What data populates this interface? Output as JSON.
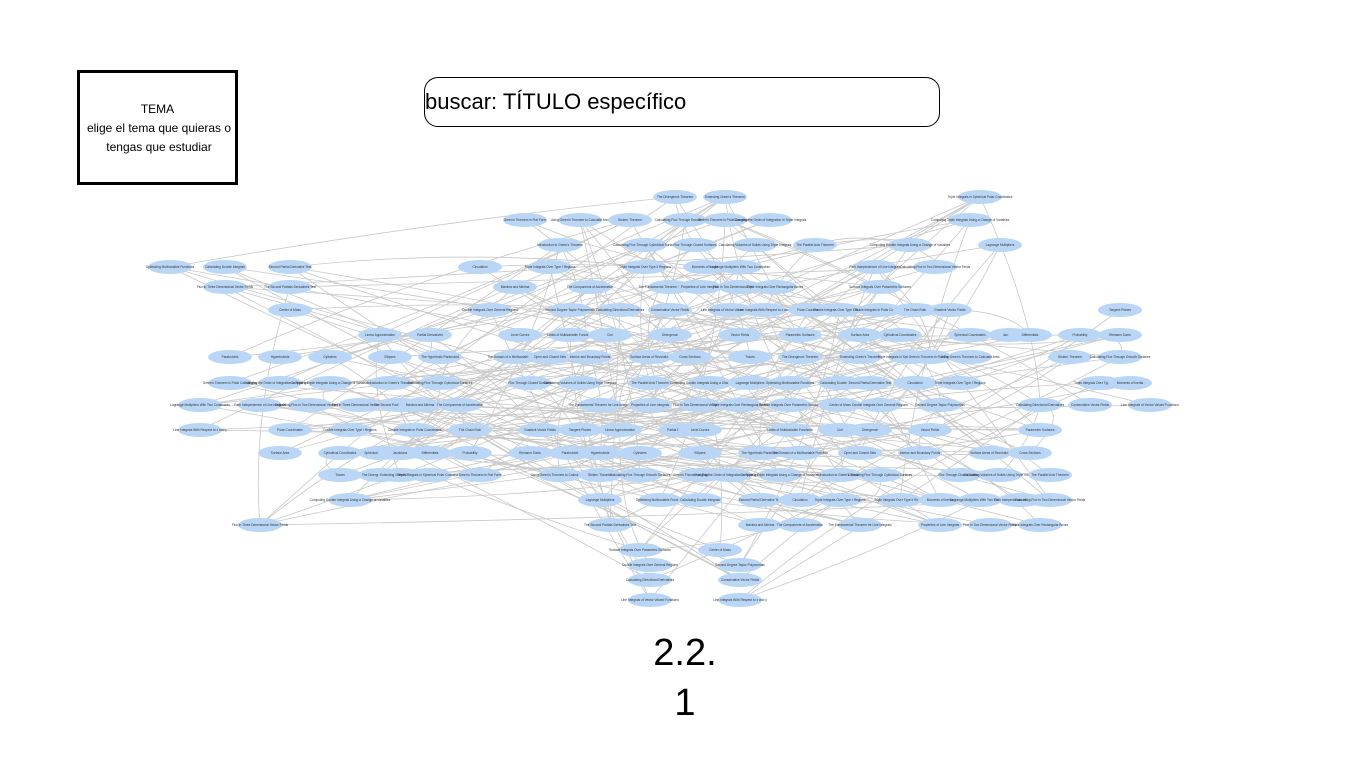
{
  "tema": {
    "title": "TEMA",
    "description": "elige el tema que quieras o tengas que estudiar"
  },
  "search": {
    "label": "buscar: TÍTULO específico"
  },
  "diagram": {
    "node_color": "#b9d6f6",
    "edge_color": "#c8c8c8",
    "nodes": [
      "The Divergence Theorem",
      "Extending Green's Theorem",
      "Triple Integrals in Spherical Polar Coordinates",
      "Green's Theorem in Flat Form",
      "Using Green's Theorem to Calculate Area",
      "Stokes' Theorem",
      "Calculating Flux Through Smooth Surfaces",
      "Green's Theorem in Polar Coordinates",
      "Changing the Order of Integration in Triple Integrals",
      "Computing Triple Integrals Using a Change of Variables",
      "Introduction to Green's Theorem",
      "Calculating Flux Through Cylindrical Surfaces",
      "Flux Through Closed Surfaces",
      "Calculating Volumes of Solids Using Triple Integrals",
      "The Parallel Axis Theorem",
      "Computing Double Integrals Using a Change of Variables",
      "Lagrange Multipliers",
      "Optimizing Multivariable Functions",
      "Calculating Double Integrals",
      "Second Partial Derivative Test",
      "Circulation",
      "Triple Integrals Over Type I Regions",
      "Triple Integrals Over Type II Regions",
      "Moments of Inertia",
      "Lagrange Multipliers With Two Constraints",
      "Path Independence of Line Integrals",
      "Calculating Flux in Two Dimensional Vector Fields",
      "Flux in Three Dimensional Vector Fields",
      "The Second Partials Derivatives Test",
      "Maxima and Minima",
      "The Components of Acceleration",
      "The Fundamental Theorem for Line Integrals",
      "Properties of Line Integrals",
      "Flux In Two Dimensional Vector Fields",
      "Triple Integrals Over Rectangular Boxes",
      "Surface Integrals Over Parametric Surfaces",
      "Center of Mass",
      "Double Integrals Over General Regions",
      "Second Degree Taylor Polynomials",
      "Calculating Directional Derivatives",
      "Conservative Vector Fields",
      "Line Integrals of Vector Valued Functions",
      "Line Integrals With Respect to x and y",
      "Polar Coordinates",
      "Double Integrals Over Type I Regions",
      "Double Integrals in Polar Coordinates",
      "The Chain Rule",
      "Gradient Vector Fields",
      "Tangent Planes",
      "Linear Approximation",
      "Partial Derivatives",
      "Level Curves",
      "Limits of Multivariable Functions",
      "Curl",
      "Divergence",
      "Vector Fields",
      "Parametric Surfaces",
      "Surface Area",
      "Cylindrical Coordinates",
      "Spherical Coordinates",
      "Jacobians",
      "Differentials",
      "Probability",
      "Riemann Sums",
      "Paraboloids",
      "Hyperboloids",
      "Cylinders",
      "Ellipses",
      "The Hyperbolic Paraboloid",
      "The Domain of a Multivariable Function",
      "Open and Closed Sets",
      "Interior and Boundary Points",
      "Surface Areas of Revolution",
      "Cross Sections",
      "Traces"
    ]
  }
}
